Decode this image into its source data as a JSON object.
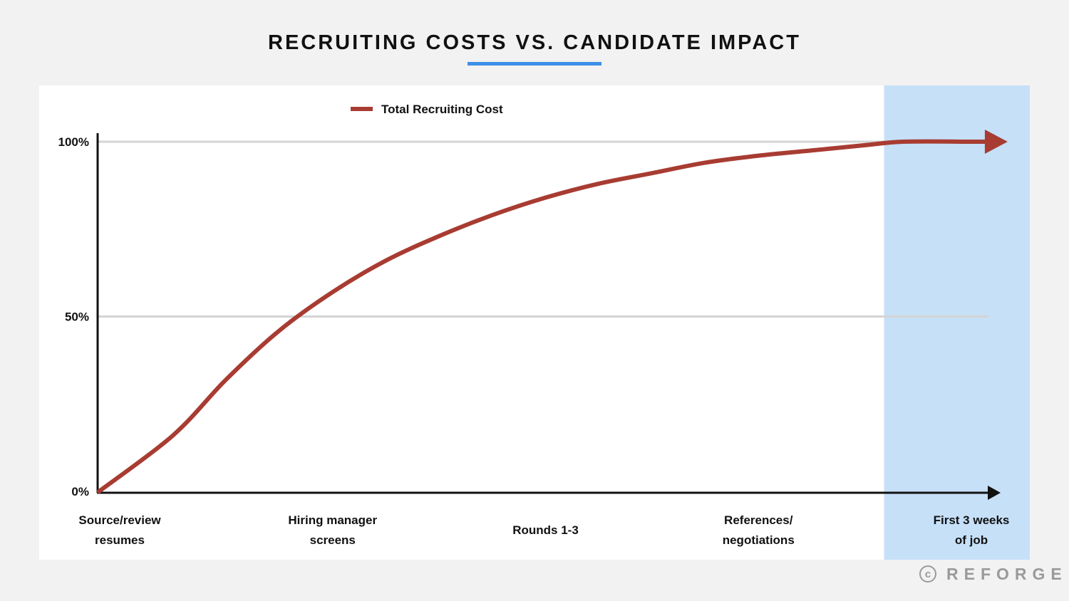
{
  "header": {
    "title": "RECRUITING COSTS VS. CANDIDATE IMPACT"
  },
  "colors": {
    "title_underline": "#3d8fe6",
    "series_line": "#a83c32",
    "highlight_band": "#c6e0f8",
    "axis": "#111111",
    "grid": "#d4d4d4",
    "page_background": "#f2f2f2",
    "panel_background": "#ffffff"
  },
  "brand": {
    "icon": "copyright-icon",
    "icon_glyph": "c",
    "name": "REFORGE"
  },
  "chart_data": {
    "type": "line",
    "title": "RECRUITING COSTS VS. CANDIDATE IMPACT",
    "legend": {
      "label": "Total Recruiting Cost",
      "placement": "top-left"
    },
    "categories": [
      [
        "Source/review",
        "resumes"
      ],
      [
        "Hiring manager",
        "screens"
      ],
      [
        "Rounds 1-3"
      ],
      [
        "References/",
        "negotiations"
      ],
      [
        "First 3 weeks",
        "of job"
      ]
    ],
    "y_ticks": [
      "0%",
      "50%",
      "100%"
    ],
    "ylim": [
      0,
      100
    ],
    "grid": "horizontal",
    "highlighted_category": 4,
    "series": [
      {
        "name": "Total Recruiting Cost",
        "x": [
          0,
          0.25,
          0.5,
          0.75,
          1.0,
          1.25,
          1.5,
          1.75,
          2.0,
          2.25,
          2.5,
          2.75,
          3.0,
          3.25,
          3.5,
          3.68,
          4.0,
          4.07
        ],
        "values": [
          0,
          16,
          32,
          46,
          57,
          66,
          73,
          79,
          84,
          88,
          91,
          94,
          96,
          97.5,
          99,
          100,
          100,
          100
        ],
        "end_marker": "arrow"
      }
    ]
  }
}
